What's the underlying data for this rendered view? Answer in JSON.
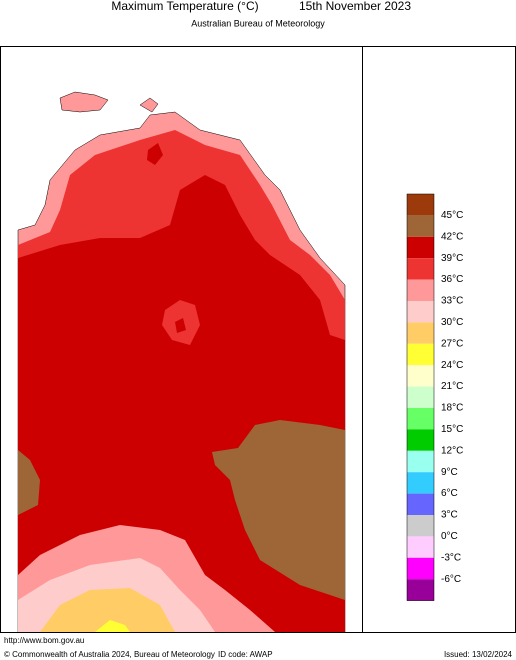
{
  "header": {
    "title": "Maximum Temperature (°C)",
    "date": "15th November 2023",
    "subtitle": "Australian Bureau of Meteorology"
  },
  "legend": {
    "colors": [
      "#9c3a0c",
      "#9e6636",
      "#cc0000",
      "#ee3333",
      "#ff9999",
      "#ffcccc",
      "#ffcc66",
      "#ffff33",
      "#ffffcc",
      "#ccffcc",
      "#66ff66",
      "#00cc00",
      "#99ffee",
      "#33ccff",
      "#6666ff",
      "#cccccc",
      "#ffccff",
      "#ff00ff",
      "#990099"
    ],
    "labels": [
      "45°C",
      "42°C",
      "39°C",
      "36°C",
      "33°C",
      "30°C",
      "27°C",
      "24°C",
      "21°C",
      "18°C",
      "15°C",
      "12°C",
      "9°C",
      "6°C",
      "3°C",
      "0°C",
      "-3°C",
      "-6°C"
    ]
  },
  "footer": {
    "url": "http://www.bom.gov.au",
    "copyright": "© Commonwealth of Australia 2024, Bureau of Meteorology",
    "id_code": "ID code: AWAP",
    "issued": "Issued: 13/02/2024"
  }
}
